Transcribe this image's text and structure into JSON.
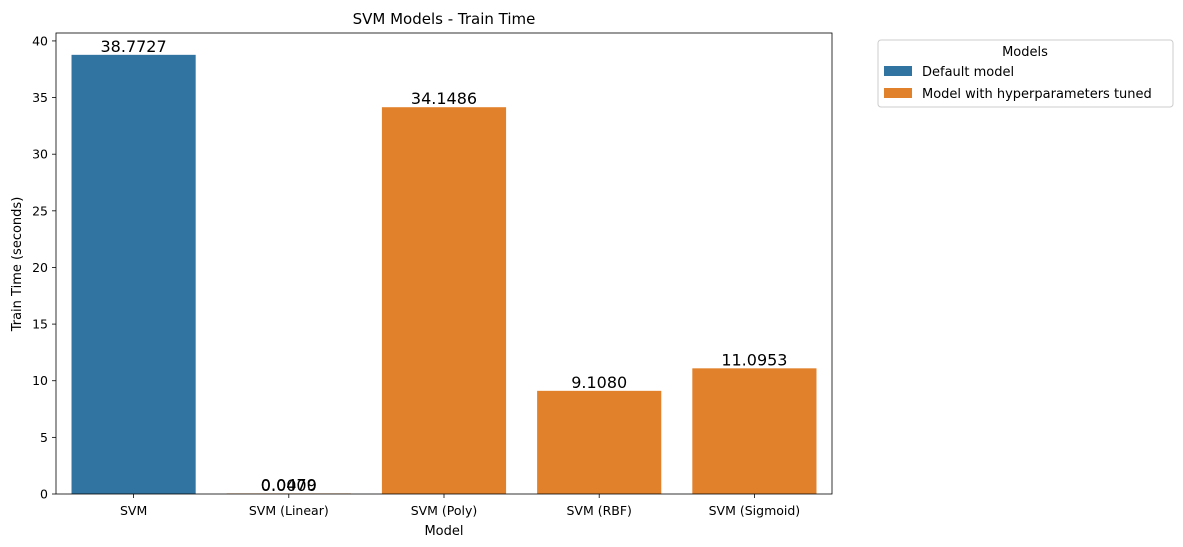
{
  "chart_data": {
    "type": "bar",
    "title": "SVM Models - Train Time",
    "xlabel": "Model",
    "ylabel": "Train Time (seconds)",
    "categories": [
      "SVM",
      "SVM (Linear)",
      "SVM (Poly)",
      "SVM (RBF)",
      "SVM (Sigmoid)"
    ],
    "series": [
      {
        "name": "Default model",
        "color": "#3274a1",
        "values": [
          38.7727,
          0,
          0,
          0,
          0
        ],
        "labels": [
          "38.7727",
          "0.0000",
          "",
          "",
          ""
        ]
      },
      {
        "name": "Model with hyperparameters tuned",
        "color": "#e1812c",
        "values": [
          0,
          0.0479,
          34.1486,
          9.108,
          11.0953
        ],
        "labels": [
          "",
          "0.0479",
          "34.1486",
          "9.1080",
          "11.0953"
        ]
      }
    ],
    "ylim": [
      0,
      40.7
    ],
    "yticks": [
      0,
      5,
      10,
      15,
      20,
      25,
      30,
      35,
      40
    ],
    "legend": {
      "title": "Models",
      "position": "outside-right"
    },
    "grid": false
  }
}
